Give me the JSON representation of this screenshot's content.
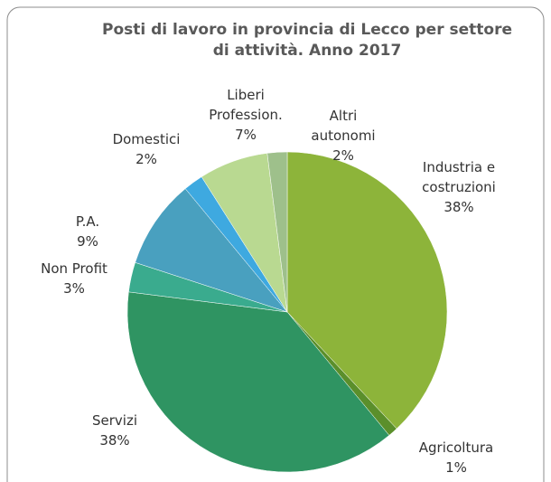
{
  "chart_data": {
    "type": "pie",
    "title": "Posti di lavoro in provincia di Lecco per settore\ndi attività. Anno 2017",
    "categories": [
      "Industria e\ncostruzioni",
      "Agricoltura",
      "Servizi",
      "Non Profit",
      "P.A.",
      "Domestici",
      "Liberi\nProfession.",
      "Altri\nautonomi"
    ],
    "values": [
      38,
      1,
      38,
      3,
      9,
      2,
      7,
      2
    ],
    "value_labels": [
      "38%",
      "1%",
      "38%",
      "3%",
      "9%",
      "2%",
      "7%",
      "2%"
    ],
    "colors": [
      "#8db43a",
      "#5b8f2b",
      "#2f9462",
      "#3aab8e",
      "#49a0bf",
      "#3ea9e0",
      "#b9d991",
      "#9ec08b"
    ]
  }
}
